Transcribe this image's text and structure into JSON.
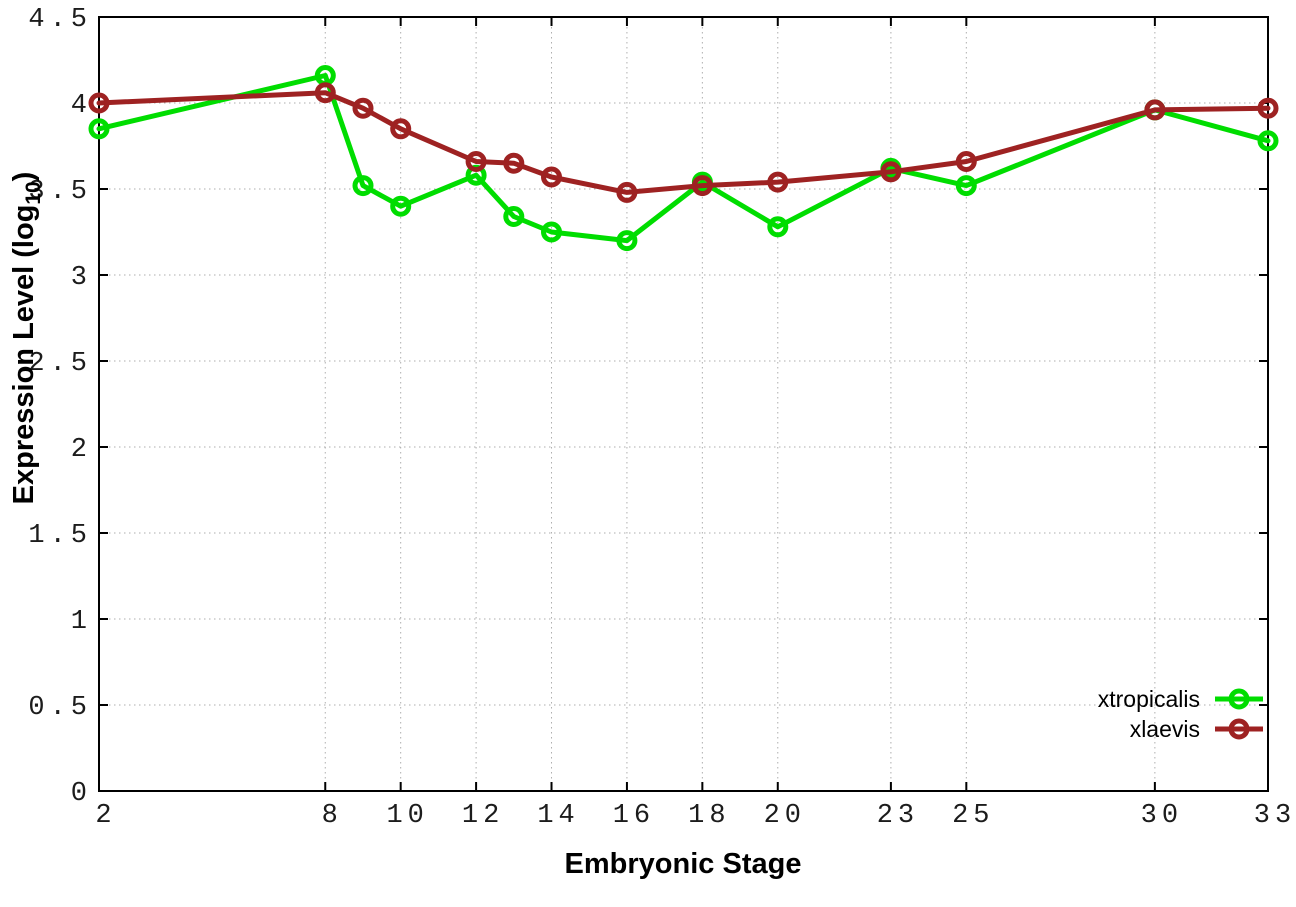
{
  "chart_data": {
    "type": "line",
    "title": "",
    "xlabel": "Embryonic Stage",
    "ylabel": "Expression Level (log10)",
    "ylabel_parts": {
      "prefix": "Expression Level (log",
      "sub": "10",
      "suffix": ")"
    },
    "x": [
      2,
      8,
      9,
      10,
      12,
      13,
      14,
      16,
      18,
      20,
      23,
      25,
      30,
      33
    ],
    "series": [
      {
        "name": "xtropicalis",
        "color": "#00dd00",
        "values": [
          3.85,
          4.16,
          3.52,
          3.4,
          3.58,
          3.34,
          3.25,
          3.2,
          3.54,
          3.28,
          3.62,
          3.52,
          3.96,
          3.78
        ]
      },
      {
        "name": "xlaevis",
        "color": "#9e2222",
        "values": [
          4.0,
          4.06,
          3.97,
          3.85,
          3.66,
          3.65,
          3.57,
          3.48,
          3.52,
          3.54,
          3.6,
          3.66,
          3.96,
          3.97
        ]
      }
    ],
    "xticks": [
      2,
      8,
      10,
      12,
      14,
      16,
      18,
      20,
      23,
      25,
      30,
      33
    ],
    "yticks": [
      0,
      0.5,
      1,
      1.5,
      2,
      2.5,
      3,
      3.5,
      4,
      4.5
    ],
    "xlim": [
      2,
      33
    ],
    "ylim": [
      0,
      4.5
    ],
    "grid": true,
    "grid_color": "#9a9a9a",
    "border_color": "#000000",
    "legend_position": "bottom-right",
    "legend_entries": [
      "xtropicalis",
      "xlaevis"
    ]
  }
}
